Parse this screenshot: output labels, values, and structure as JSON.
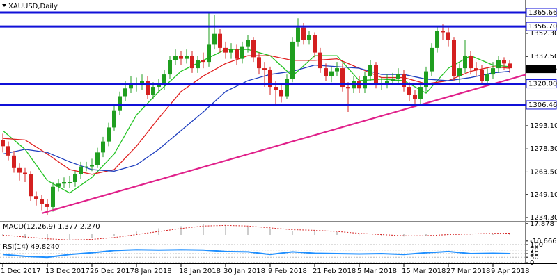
{
  "chart_data": [
    {
      "type": "candlestick",
      "title": "XAUUSD,Daily",
      "categories": [
        "1 Dec 2017",
        null,
        null,
        null,
        null,
        null,
        null,
        null,
        "13 Dec 2017",
        null,
        null,
        null,
        null,
        null,
        null,
        null,
        "26 Dec 2017",
        null,
        null,
        null,
        null,
        null,
        null,
        null,
        "8 Jan 2018",
        null,
        null,
        null,
        null,
        null,
        null,
        null,
        "18 Jan 2018",
        null,
        null,
        null,
        null,
        null,
        null,
        null,
        "30 Jan 2018",
        null,
        null,
        null,
        null,
        null,
        null,
        null,
        "9 Feb 2018",
        null,
        null,
        null,
        null,
        null,
        null,
        null,
        "21 Feb 2018",
        null,
        null,
        null,
        null,
        null,
        null,
        null,
        "5 Mar 2018",
        null,
        null,
        null,
        null,
        null,
        null,
        null,
        "15 Mar 2018",
        null,
        null,
        null,
        null,
        null,
        null,
        null,
        "27 Mar 2018",
        null,
        null,
        null,
        null,
        null,
        null,
        null,
        "9 Apr 2018",
        null,
        null,
        null
      ],
      "open": [
        1284,
        1280,
        1274,
        1266,
        1263,
        1262,
        1248,
        1246,
        1243,
        1241,
        1254,
        1256,
        1257,
        1257,
        1262,
        1267,
        1267,
        1268,
        1276,
        1283,
        1292,
        1303,
        1312,
        1317,
        1319,
        1320,
        1322,
        1313,
        1318,
        1319,
        1326,
        1335,
        1338,
        1336,
        1338,
        1330,
        1335,
        1334,
        1345,
        1352,
        1343,
        1340,
        1342,
        1336,
        1344,
        1348,
        1337,
        1330,
        1329,
        1318,
        1316,
        1312,
        1323,
        1347,
        1356,
        1348,
        1351,
        1340,
        1330,
        1325,
        1328,
        1330,
        1318,
        1317,
        1322,
        1317,
        1325,
        1332,
        1320,
        1320,
        1322,
        1323,
        1326,
        1318,
        1313,
        1310,
        1318,
        1328,
        1343,
        1354,
        1353,
        1348,
        1325,
        1330,
        1338,
        1330,
        1329,
        1322,
        1326,
        1330,
        1335,
        1333
      ],
      "high": [
        1288,
        1283,
        1277,
        1269,
        1266,
        1264,
        1251,
        1249,
        1246,
        1257,
        1259,
        1260,
        1261,
        1264,
        1270,
        1270,
        1272,
        1279,
        1286,
        1295,
        1306,
        1315,
        1322,
        1325,
        1324,
        1326,
        1325,
        1321,
        1323,
        1329,
        1338,
        1342,
        1341,
        1342,
        1341,
        1338,
        1340,
        1366,
        1364,
        1355,
        1347,
        1346,
        1345,
        1347,
        1351,
        1350,
        1340,
        1334,
        1331,
        1322,
        1320,
        1326,
        1350,
        1362,
        1359,
        1354,
        1353,
        1343,
        1333,
        1331,
        1334,
        1333,
        1321,
        1325,
        1325,
        1328,
        1335,
        1334,
        1324,
        1326,
        1327,
        1330,
        1329,
        1321,
        1316,
        1321,
        1331,
        1346,
        1357,
        1358,
        1356,
        1350,
        1333,
        1348,
        1341,
        1334,
        1332,
        1330,
        1334,
        1338,
        1337,
        1335
      ],
      "low": [
        1276,
        1271,
        1263,
        1258,
        1257,
        1245,
        1242,
        1239,
        1236,
        1238,
        1251,
        1253,
        1253,
        1254,
        1259,
        1264,
        1264,
        1266,
        1273,
        1280,
        1290,
        1300,
        1309,
        1314,
        1315,
        1316,
        1310,
        1310,
        1314,
        1316,
        1323,
        1332,
        1332,
        1333,
        1327,
        1327,
        1330,
        1331,
        1342,
        1340,
        1336,
        1336,
        1332,
        1333,
        1340,
        1334,
        1326,
        1318,
        1313,
        1307,
        1308,
        1310,
        1321,
        1344,
        1345,
        1345,
        1337,
        1327,
        1322,
        1321,
        1325,
        1315,
        1302,
        1314,
        1314,
        1314,
        1322,
        1317,
        1316,
        1317,
        1319,
        1320,
        1315,
        1309,
        1305,
        1306,
        1315,
        1325,
        1340,
        1348,
        1344,
        1322,
        1320,
        1327,
        1326,
        1325,
        1319,
        1319,
        1323,
        1327,
        1329,
        1327
      ],
      "close": [
        1280,
        1274,
        1266,
        1263,
        1262,
        1248,
        1246,
        1243,
        1241,
        1254,
        1256,
        1257,
        1257,
        1262,
        1267,
        1267,
        1268,
        1276,
        1283,
        1292,
        1303,
        1312,
        1317,
        1319,
        1320,
        1322,
        1313,
        1318,
        1319,
        1326,
        1335,
        1338,
        1336,
        1338,
        1330,
        1335,
        1334,
        1345,
        1352,
        1343,
        1340,
        1342,
        1336,
        1344,
        1348,
        1337,
        1330,
        1329,
        1318,
        1316,
        1312,
        1323,
        1347,
        1356,
        1348,
        1351,
        1340,
        1330,
        1325,
        1328,
        1330,
        1318,
        1317,
        1322,
        1317,
        1325,
        1332,
        1320,
        1320,
        1322,
        1323,
        1326,
        1318,
        1313,
        1310,
        1318,
        1328,
        1343,
        1354,
        1353,
        1348,
        1325,
        1330,
        1338,
        1330,
        1329,
        1322,
        1326,
        1330,
        1335,
        1333,
        1330
      ],
      "up_color": "#1f9e1f",
      "down_color": "#d42020",
      "ylim": [
        1232.07,
        1373.68
      ],
      "yticks": [
        {
          "value": 1352.3,
          "label": "1352.30"
        },
        {
          "value": 1337.5,
          "label": "1337.50"
        },
        {
          "value": 1293.1,
          "label": "1293.10"
        },
        {
          "value": 1278.3,
          "label": "1278.30"
        },
        {
          "value": 1263.5,
          "label": "1263.50"
        },
        {
          "value": 1249.1,
          "label": "1249.10"
        },
        {
          "value": 1234.3,
          "label": "1234.30"
        }
      ],
      "series": [
        {
          "color": "#22c322",
          "x": [
            0,
            4,
            8,
            12,
            16,
            20,
            24,
            28,
            32,
            36,
            40,
            44,
            48,
            52,
            56,
            60,
            64,
            68,
            72,
            76,
            80,
            84,
            88,
            91
          ],
          "values": [
            1290,
            1278,
            1258,
            1250,
            1260,
            1275,
            1300,
            1315,
            1328,
            1335,
            1342,
            1342,
            1338,
            1325,
            1338,
            1338,
            1322,
            1323,
            1322,
            1314,
            1330,
            1338,
            1332,
            1331
          ]
        },
        {
          "color": "#e02020",
          "x": [
            0,
            4,
            8,
            12,
            16,
            20,
            24,
            28,
            32,
            36,
            40,
            44,
            48,
            52,
            56,
            60,
            64,
            68,
            72,
            76,
            80,
            84,
            88,
            91
          ],
          "values": [
            1285,
            1284,
            1275,
            1265,
            1262,
            1265,
            1280,
            1298,
            1315,
            1325,
            1333,
            1338,
            1338,
            1335,
            1335,
            1336,
            1330,
            1324,
            1324,
            1320,
            1322,
            1328,
            1331,
            1330
          ]
        },
        {
          "color": "#1f3fbf",
          "x": [
            0,
            4,
            8,
            12,
            16,
            20,
            24,
            28,
            32,
            36,
            40,
            44,
            48,
            52,
            56,
            60,
            64,
            68,
            72,
            76,
            80,
            84,
            88,
            91
          ],
          "values": [
            1275,
            1278,
            1276,
            1270,
            1265,
            1264,
            1268,
            1278,
            1290,
            1302,
            1315,
            1322,
            1326,
            1328,
            1332,
            1331,
            1330,
            1326,
            1326,
            1323,
            1322,
            1324,
            1327,
            1328
          ]
        }
      ],
      "levels": [
        {
          "value": 1365.66,
          "label": "1365.66"
        },
        {
          "value": 1356.7,
          "label": "1356.70"
        },
        {
          "value": 1320,
          "label": "1320.00"
        },
        {
          "value": 1306.46,
          "label": "1306.46"
        }
      ],
      "level_color": "#1010d8",
      "trendline": {
        "color": "#e0208a",
        "x": [
          7,
          94
        ],
        "values": [
          1237,
          1326
        ]
      },
      "last_price": {
        "value": 1329.55,
        "label": "1329.55"
      }
    },
    {
      "type": "bar",
      "title": "MACD(12,26,9) 1.377 2.270",
      "color": "#9a9a9a",
      "x": [
        0,
        4,
        8,
        12,
        16,
        20,
        24,
        28,
        32,
        36,
        40,
        44,
        48,
        52,
        56,
        60,
        64,
        68,
        72,
        76,
        80,
        84,
        88,
        91
      ],
      "values": [
        -2,
        -6,
        -10,
        -9,
        -6,
        -2,
        5,
        10,
        14,
        17,
        16,
        13,
        8,
        6,
        6,
        4,
        0,
        -2,
        -3,
        -2,
        1,
        2,
        2,
        1.377
      ],
      "series": [
        {
          "color": "#d42020",
          "x": [
            0,
            4,
            8,
            12,
            16,
            20,
            24,
            28,
            32,
            36,
            40,
            44,
            48,
            52,
            56,
            60,
            64,
            68,
            72,
            76,
            80,
            84,
            88,
            91
          ],
          "values": [
            -1,
            -4,
            -7,
            -9,
            -8,
            -5,
            0,
            5,
            10,
            14,
            15,
            14,
            11,
            8,
            7,
            5,
            2,
            0,
            -2,
            -2,
            0,
            1,
            2,
            2.27
          ]
        }
      ],
      "ylim": [
        -12,
        20
      ],
      "yticks": [
        {
          "value": 17.878,
          "label": "17.878"
        },
        {
          "value": -10.666,
          "label": "-10.666"
        }
      ]
    },
    {
      "type": "line",
      "title": "RSI(14) 49.8240",
      "color": "#1e8fff",
      "x": [
        0,
        4,
        8,
        12,
        16,
        20,
        24,
        28,
        32,
        36,
        40,
        44,
        48,
        52,
        56,
        60,
        64,
        68,
        72,
        76,
        80,
        84,
        88,
        91
      ],
      "values": [
        45,
        35,
        30,
        45,
        55,
        68,
        72,
        70,
        72,
        70,
        62,
        60,
        45,
        60,
        52,
        50,
        48,
        50,
        45,
        55,
        62,
        50,
        52,
        49.824
      ],
      "ylim": [
        0,
        100
      ],
      "yticks": [
        0,
        30,
        50,
        70,
        100
      ]
    }
  ]
}
